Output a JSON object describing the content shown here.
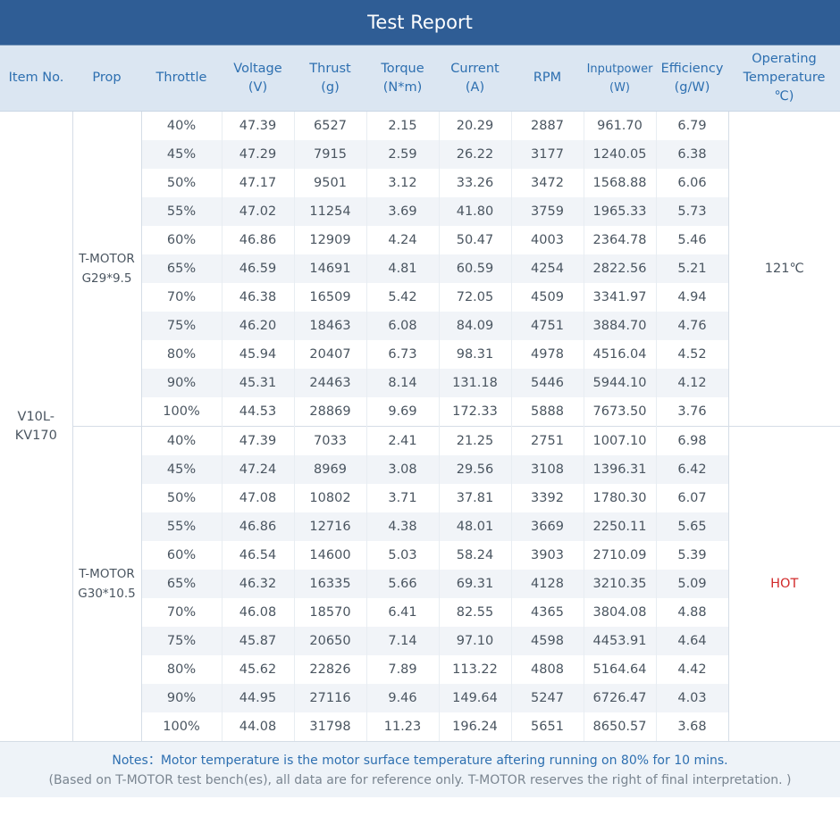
{
  "title": "Test Report",
  "headers": {
    "item": "Item No.",
    "prop": "Prop",
    "throttle": "Throttle",
    "voltage": [
      "Voltage",
      "(V)"
    ],
    "thrust": [
      "Thrust",
      "(g)"
    ],
    "torque": [
      "Torque",
      "(N*m)"
    ],
    "current": [
      "Current",
      "(A)"
    ],
    "rpm": "RPM",
    "inputpower": [
      "Inputpower",
      "(W)"
    ],
    "efficiency": [
      "Efficiency",
      "(g/W)"
    ],
    "temperature": [
      "Operating",
      "Temperature",
      "℃)"
    ]
  },
  "item_no": [
    "V10L-",
    "KV170"
  ],
  "groups": [
    {
      "prop": [
        "T-MOTOR",
        "G29*9.5"
      ],
      "temperature": "121℃",
      "rows": [
        [
          "40%",
          "47.39",
          "6527",
          "2.15",
          "20.29",
          "2887",
          "961.70",
          "6.79"
        ],
        [
          "45%",
          "47.29",
          "7915",
          "2.59",
          "26.22",
          "3177",
          "1240.05",
          "6.38"
        ],
        [
          "50%",
          "47.17",
          "9501",
          "3.12",
          "33.26",
          "3472",
          "1568.88",
          "6.06"
        ],
        [
          "55%",
          "47.02",
          "11254",
          "3.69",
          "41.80",
          "3759",
          "1965.33",
          "5.73"
        ],
        [
          "60%",
          "46.86",
          "12909",
          "4.24",
          "50.47",
          "4003",
          "2364.78",
          "5.46"
        ],
        [
          "65%",
          "46.59",
          "14691",
          "4.81",
          "60.59",
          "4254",
          "2822.56",
          "5.21"
        ],
        [
          "70%",
          "46.38",
          "16509",
          "5.42",
          "72.05",
          "4509",
          "3341.97",
          "4.94"
        ],
        [
          "75%",
          "46.20",
          "18463",
          "6.08",
          "84.09",
          "4751",
          "3884.70",
          "4.76"
        ],
        [
          "80%",
          "45.94",
          "20407",
          "6.73",
          "98.31",
          "4978",
          "4516.04",
          "4.52"
        ],
        [
          "90%",
          "45.31",
          "24463",
          "8.14",
          "131.18",
          "5446",
          "5944.10",
          "4.12"
        ],
        [
          "100%",
          "44.53",
          "28869",
          "9.69",
          "172.33",
          "5888",
          "7673.50",
          "3.76"
        ]
      ]
    },
    {
      "prop": [
        "T-MOTOR",
        "G30*10.5"
      ],
      "temperature": "HOT",
      "rows": [
        [
          "40%",
          "47.39",
          "7033",
          "2.41",
          "21.25",
          "2751",
          "1007.10",
          "6.98"
        ],
        [
          "45%",
          "47.24",
          "8969",
          "3.08",
          "29.56",
          "3108",
          "1396.31",
          "6.42"
        ],
        [
          "50%",
          "47.08",
          "10802",
          "3.71",
          "37.81",
          "3392",
          "1780.30",
          "6.07"
        ],
        [
          "55%",
          "46.86",
          "12716",
          "4.38",
          "48.01",
          "3669",
          "2250.11",
          "5.65"
        ],
        [
          "60%",
          "46.54",
          "14600",
          "5.03",
          "58.24",
          "3903",
          "2710.09",
          "5.39"
        ],
        [
          "65%",
          "46.32",
          "16335",
          "5.66",
          "69.31",
          "4128",
          "3210.35",
          "5.09"
        ],
        [
          "70%",
          "46.08",
          "18570",
          "6.41",
          "82.55",
          "4365",
          "3804.08",
          "4.88"
        ],
        [
          "75%",
          "45.87",
          "20650",
          "7.14",
          "97.10",
          "4598",
          "4453.91",
          "4.64"
        ],
        [
          "80%",
          "45.62",
          "22826",
          "7.89",
          "113.22",
          "4808",
          "5164.64",
          "4.42"
        ],
        [
          "90%",
          "44.95",
          "27116",
          "9.46",
          "149.64",
          "5247",
          "6726.47",
          "4.03"
        ],
        [
          "100%",
          "44.08",
          "31798",
          "11.23",
          "196.24",
          "5651",
          "8650.57",
          "3.68"
        ]
      ]
    }
  ],
  "notes": {
    "line1": "Notes：Motor temperature is the motor surface temperature aftering running on 80% for 10 mins.",
    "line2": "(Based on T-MOTOR test bench(es), all data are for reference only. T-MOTOR reserves the right of final interpretation. )"
  }
}
